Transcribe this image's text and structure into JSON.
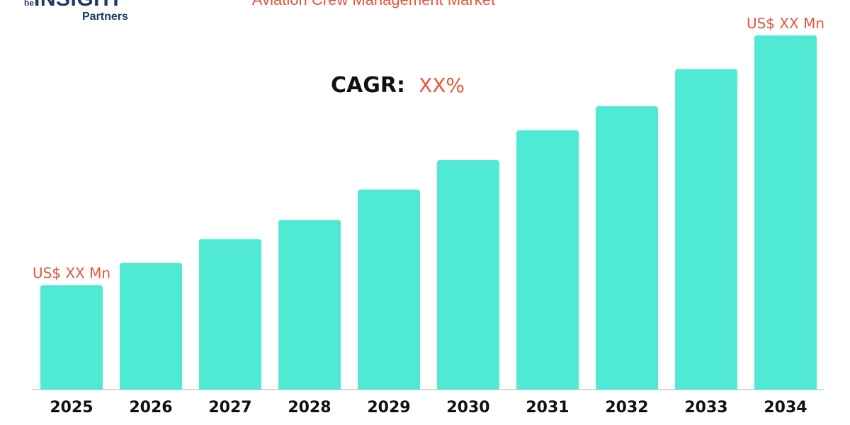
{
  "logo": {
    "the": "The",
    "brand": "INSIGHT",
    "sub": "Partners"
  },
  "cagr": {
    "label": "CAGR:",
    "value": "XX%"
  },
  "colors": {
    "bar": "#50EAD4",
    "accent": "#E8543A",
    "axis": "#CCCCCC",
    "tick_text": "#111111",
    "logo": "#1F3864"
  },
  "chart_data": {
    "type": "bar",
    "title": "Aviation Crew Management Market",
    "xlabel": "",
    "ylabel": "",
    "categories": [
      "2025",
      "2026",
      "2027",
      "2028",
      "2029",
      "2030",
      "2031",
      "2032",
      "2033",
      "2034"
    ],
    "values": [
      29.5,
      35.8,
      42.5,
      47.9,
      56.5,
      64.8,
      73.2,
      80.0,
      90.5,
      100
    ],
    "ylim": [
      0,
      100
    ],
    "grid": false,
    "legend": "none",
    "annotations": [
      {
        "category": "2025",
        "text": "US$ XX Mn"
      },
      {
        "category": "2034",
        "text": "US$ XX Mn"
      }
    ]
  }
}
